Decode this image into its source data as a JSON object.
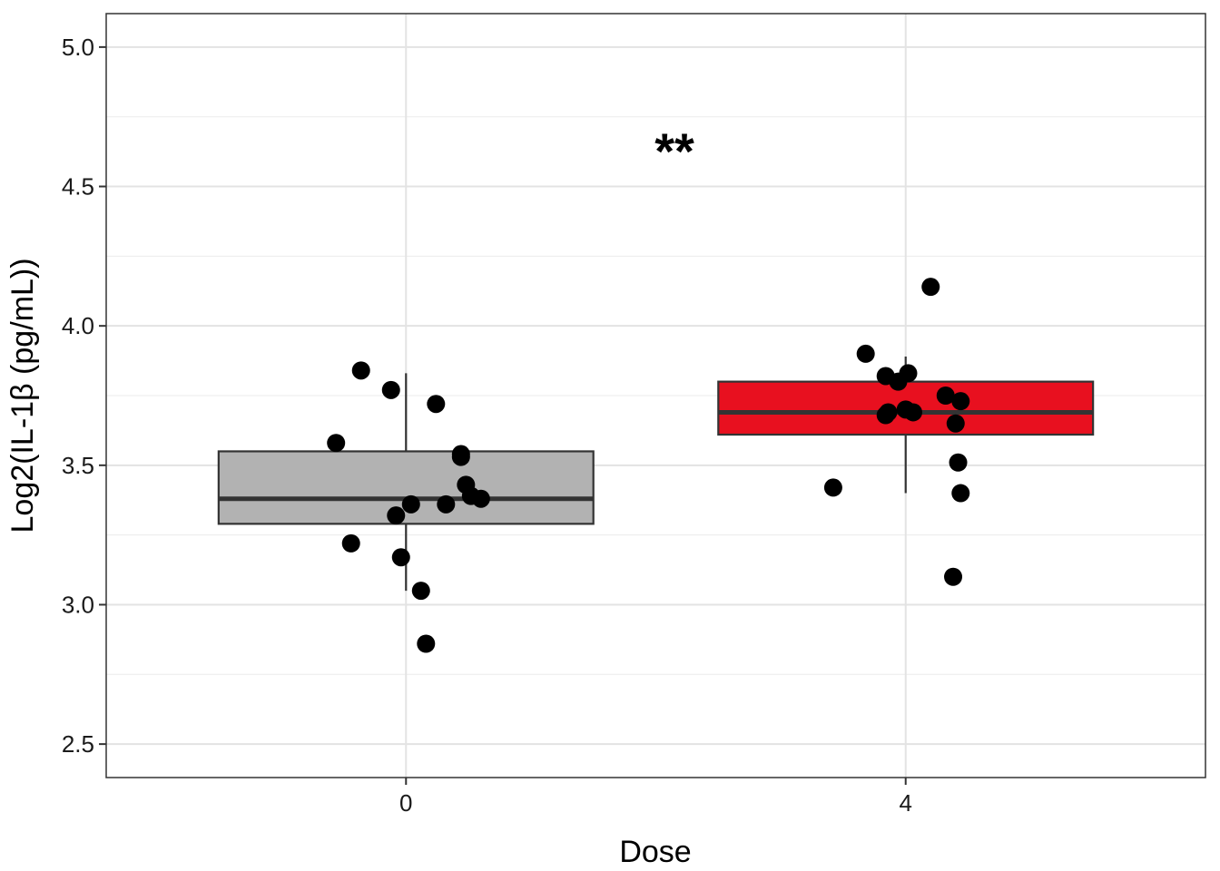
{
  "chart_data": {
    "type": "box",
    "xlabel": "Dose",
    "ylabel": "Log2(IL-1β  (pg/mL))",
    "ylim": [
      2.38,
      5.12
    ],
    "y_ticks": [
      2.5,
      3.0,
      3.5,
      4.0,
      4.5,
      5.0
    ],
    "y_tick_labels": [
      "2.5",
      "3.0",
      "3.5",
      "4.0",
      "4.5",
      "5.0"
    ],
    "annotation": "**",
    "grid": true,
    "legend": "none",
    "categories": [
      "0",
      "4"
    ],
    "boxes": [
      {
        "name": "0",
        "color": "#b2b2b2",
        "q1": 3.29,
        "median": 3.38,
        "q3": 3.55,
        "whisker_low": 3.05,
        "whisker_high": 3.83,
        "points": [
          {
            "jitter": -0.14,
            "y": 3.58
          },
          {
            "jitter": -0.09,
            "y": 3.84
          },
          {
            "jitter": -0.11,
            "y": 3.22
          },
          {
            "jitter": -0.03,
            "y": 3.77
          },
          {
            "jitter": 0.06,
            "y": 3.72
          },
          {
            "jitter": 0.11,
            "y": 3.53
          },
          {
            "jitter": 0.11,
            "y": 3.54
          },
          {
            "jitter": 0.12,
            "y": 3.43
          },
          {
            "jitter": 0.13,
            "y": 3.39
          },
          {
            "jitter": 0.15,
            "y": 3.38
          },
          {
            "jitter": 0.08,
            "y": 3.36
          },
          {
            "jitter": 0.01,
            "y": 3.36
          },
          {
            "jitter": -0.02,
            "y": 3.32
          },
          {
            "jitter": -0.01,
            "y": 3.17
          },
          {
            "jitter": 0.03,
            "y": 3.05
          },
          {
            "jitter": 0.04,
            "y": 2.86
          }
        ]
      },
      {
        "name": "4",
        "color": "#e8101f",
        "q1": 3.61,
        "median": 3.69,
        "q3": 3.8,
        "whisker_low": 3.4,
        "whisker_high": 3.89,
        "points": [
          {
            "jitter": 0.05,
            "y": 4.14
          },
          {
            "jitter": -0.08,
            "y": 3.9
          },
          {
            "jitter": -0.04,
            "y": 3.82
          },
          {
            "jitter": 0.005,
            "y": 3.83
          },
          {
            "jitter": -0.015,
            "y": 3.8
          },
          {
            "jitter": 0.08,
            "y": 3.75
          },
          {
            "jitter": 0.11,
            "y": 3.73
          },
          {
            "jitter": -0.04,
            "y": 3.68
          },
          {
            "jitter": -0.035,
            "y": 3.69
          },
          {
            "jitter": 0.0,
            "y": 3.7
          },
          {
            "jitter": 0.015,
            "y": 3.69
          },
          {
            "jitter": 0.1,
            "y": 3.65
          },
          {
            "jitter": 0.105,
            "y": 3.51
          },
          {
            "jitter": -0.145,
            "y": 3.42
          },
          {
            "jitter": 0.11,
            "y": 3.4
          },
          {
            "jitter": 0.095,
            "y": 3.1
          }
        ]
      }
    ]
  }
}
